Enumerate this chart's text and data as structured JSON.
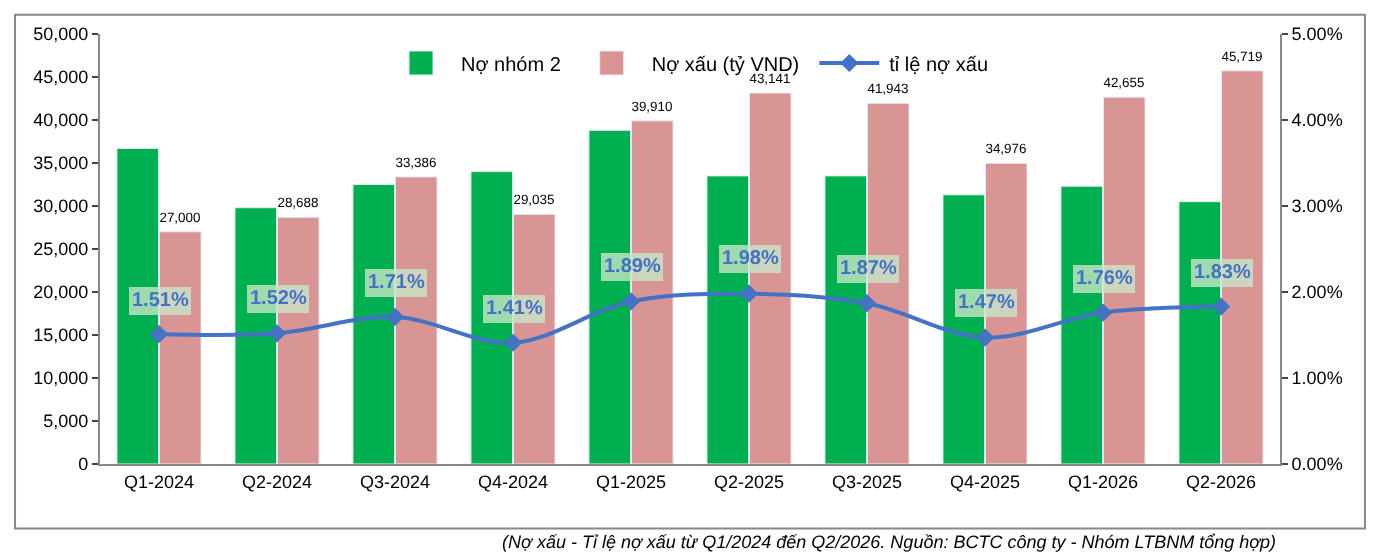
{
  "chart_data": {
    "type": "bar",
    "categories": [
      "Q1-2024",
      "Q2-2024",
      "Q3-2024",
      "Q4-2024",
      "Q1-2025",
      "Q2-2025",
      "Q3-2025",
      "Q4-2025",
      "Q1-2026",
      "Q2-2026"
    ],
    "series": [
      {
        "name": "Nợ nhóm 2",
        "color": "#00b050",
        "values": [
          36700,
          29800,
          32500,
          34000,
          38800,
          33500,
          33500,
          31300,
          32300,
          30500
        ]
      },
      {
        "name": "Nợ xấu (tỷ VND)",
        "color": "#d99594",
        "values": [
          27000,
          28688,
          33386,
          29035,
          39910,
          43141,
          41943,
          34976,
          42655,
          45719
        ],
        "value_labels": [
          "27,000",
          "28,688",
          "33,386",
          "29,035",
          "39,910",
          "43,141",
          "41,943",
          "34,976",
          "42,655",
          "45,719"
        ]
      },
      {
        "name": "tỉ lệ nợ xấu",
        "type": "line",
        "axis": "y2",
        "color": "#4472c4",
        "marker": "diamond",
        "values": [
          1.51,
          1.52,
          1.71,
          1.41,
          1.89,
          1.98,
          1.87,
          1.47,
          1.76,
          1.83
        ],
        "value_labels": [
          "1.51%",
          "1.52%",
          "1.71%",
          "1.41%",
          "1.89%",
          "1.98%",
          "1.87%",
          "1.47%",
          "1.76%",
          "1.83%"
        ]
      }
    ],
    "ylim": [
      0,
      50000
    ],
    "yticks": [
      {
        "value": 0,
        "label": "0"
      },
      {
        "value": 5000,
        "label": "5,000"
      },
      {
        "value": 10000,
        "label": "10,000"
      },
      {
        "value": 15000,
        "label": "15,000"
      },
      {
        "value": 20000,
        "label": "20,000"
      },
      {
        "value": 25000,
        "label": "25,000"
      },
      {
        "value": 30000,
        "label": "30,000"
      },
      {
        "value": 35000,
        "label": "35,000"
      },
      {
        "value": 40000,
        "label": "40,000"
      },
      {
        "value": 45000,
        "label": "45,000"
      },
      {
        "value": 50000,
        "label": "50,000"
      }
    ],
    "y2lim": [
      0,
      5
    ],
    "y2ticks": [
      {
        "value": 0,
        "label": "0.00%"
      },
      {
        "value": 1,
        "label": "1.00%"
      },
      {
        "value": 2,
        "label": "2.00%"
      },
      {
        "value": 3,
        "label": "3.00%"
      },
      {
        "value": 4,
        "label": "4.00%"
      },
      {
        "value": 5,
        "label": "5.00%"
      }
    ],
    "legend": "top",
    "annotations": [
      "(Nợ xấu - Tỉ lệ nợ xấu từ Q1/2024 đến Q2/2026. Nguồn: BCTC công ty - Nhóm LTBNM tổng hợp)"
    ]
  }
}
